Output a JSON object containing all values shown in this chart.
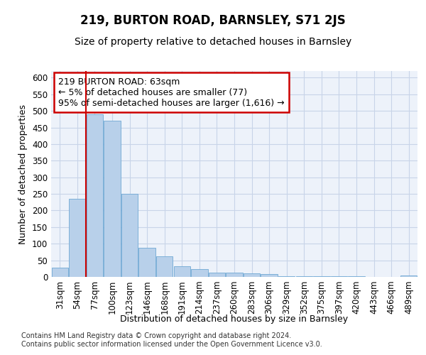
{
  "title": "219, BURTON ROAD, BARNSLEY, S71 2JS",
  "subtitle": "Size of property relative to detached houses in Barnsley",
  "xlabel": "Distribution of detached houses by size in Barnsley",
  "ylabel": "Number of detached properties",
  "categories": [
    "31sqm",
    "54sqm",
    "77sqm",
    "100sqm",
    "123sqm",
    "146sqm",
    "168sqm",
    "191sqm",
    "214sqm",
    "237sqm",
    "260sqm",
    "283sqm",
    "306sqm",
    "329sqm",
    "352sqm",
    "375sqm",
    "397sqm",
    "420sqm",
    "443sqm",
    "466sqm",
    "489sqm"
  ],
  "values": [
    27,
    235,
    490,
    470,
    250,
    88,
    63,
    33,
    23,
    13,
    12,
    10,
    8,
    2,
    2,
    2,
    2,
    2,
    1,
    1,
    5
  ],
  "bar_color": "#b8d0ea",
  "bar_edge_color": "#6fa8d4",
  "grid_color": "#c8d4e8",
  "background_color": "#edf2fa",
  "vline_x": 1.5,
  "vline_color": "#cc0000",
  "annotation_text": "219 BURTON ROAD: 63sqm\n← 5% of detached houses are smaller (77)\n95% of semi-detached houses are larger (1,616) →",
  "annotation_box_color": "#cc0000",
  "ylim": [
    0,
    620
  ],
  "yticks": [
    0,
    50,
    100,
    150,
    200,
    250,
    300,
    350,
    400,
    450,
    500,
    550,
    600
  ],
  "footer": "Contains HM Land Registry data © Crown copyright and database right 2024.\nContains public sector information licensed under the Open Government Licence v3.0.",
  "title_fontsize": 12,
  "subtitle_fontsize": 10,
  "axis_label_fontsize": 9,
  "tick_fontsize": 8.5,
  "annotation_fontsize": 9,
  "footer_fontsize": 7
}
